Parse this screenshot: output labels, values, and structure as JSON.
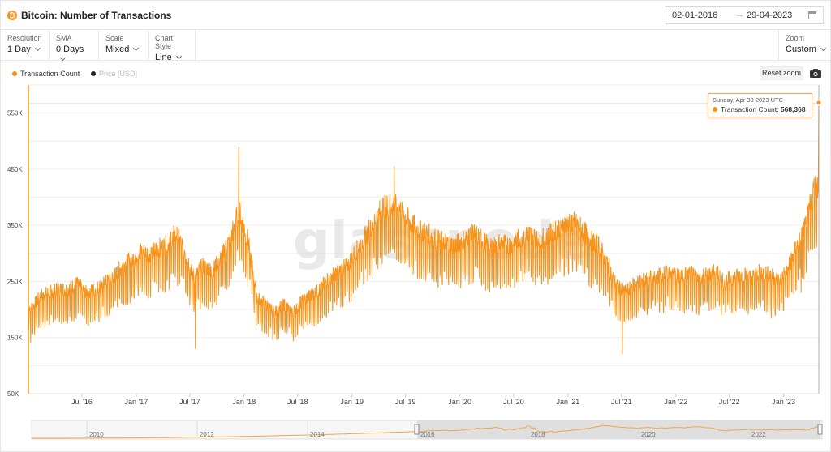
{
  "header": {
    "coin_symbol": "₿",
    "title": "Bitcoin: Number of Transactions",
    "date_from": "02-01-2016",
    "date_arrow": "→",
    "date_to": "29-04-2023"
  },
  "toolbar": {
    "resolution": {
      "label": "Resolution",
      "value": "1 Day"
    },
    "sma": {
      "label": "SMA",
      "value": "0 Days"
    },
    "scale": {
      "label": "Scale",
      "value": "Mixed"
    },
    "chart_style": {
      "label": "Chart Style",
      "value": "Line"
    },
    "zoom": {
      "label": "Zoom",
      "value": "Custom"
    }
  },
  "legend": {
    "series1": "Transaction Count",
    "series2": "Price [USD]"
  },
  "reset_zoom": "Reset zoom",
  "watermark": "glassnode",
  "tooltip": {
    "date": "Sunday, Apr 30 2023 UTC",
    "label": "Transaction Count:",
    "value": "568,368"
  },
  "colors": {
    "series": "#f7931a",
    "price": "#222222",
    "grid": "#ececec"
  },
  "navigator_ticks": [
    "2010",
    "2012",
    "2014",
    "2016",
    "2018",
    "2020",
    "2022"
  ],
  "chart_data": {
    "type": "line",
    "title": "Bitcoin: Number of Transactions",
    "series": [
      {
        "name": "Transaction Count",
        "x": [
          "2016-01",
          "2016-02",
          "2016-03",
          "2016-04",
          "2016-05",
          "2016-06",
          "2016-07",
          "2016-08",
          "2016-09",
          "2016-10",
          "2016-11",
          "2016-12",
          "2017-01",
          "2017-02",
          "2017-03",
          "2017-04",
          "2017-05",
          "2017-06",
          "2017-07",
          "2017-08",
          "2017-09",
          "2017-10",
          "2017-11",
          "2017-12",
          "2018-01",
          "2018-02",
          "2018-03",
          "2018-04",
          "2018-05",
          "2018-06",
          "2018-07",
          "2018-08",
          "2018-09",
          "2018-10",
          "2018-11",
          "2018-12",
          "2019-01",
          "2019-02",
          "2019-03",
          "2019-04",
          "2019-05",
          "2019-06",
          "2019-07",
          "2019-08",
          "2019-09",
          "2019-10",
          "2019-11",
          "2019-12",
          "2020-01",
          "2020-02",
          "2020-03",
          "2020-04",
          "2020-05",
          "2020-06",
          "2020-07",
          "2020-08",
          "2020-09",
          "2020-10",
          "2020-11",
          "2020-12",
          "2021-01",
          "2021-02",
          "2021-03",
          "2021-04",
          "2021-05",
          "2021-06",
          "2021-07",
          "2021-08",
          "2021-09",
          "2021-10",
          "2021-11",
          "2021-12",
          "2022-01",
          "2022-02",
          "2022-03",
          "2022-04",
          "2022-05",
          "2022-06",
          "2022-07",
          "2022-08",
          "2022-09",
          "2022-10",
          "2022-11",
          "2022-12",
          "2023-01",
          "2023-02",
          "2023-03",
          "2023-04"
        ],
        "values": [
          195000,
          215000,
          220000,
          225000,
          225000,
          235000,
          220000,
          225000,
          235000,
          245000,
          265000,
          275000,
          290000,
          285000,
          295000,
          300000,
          320000,
          290000,
          245000,
          265000,
          255000,
          280000,
          310000,
          360000,
          305000,
          210000,
          200000,
          185000,
          200000,
          185000,
          205000,
          215000,
          225000,
          245000,
          255000,
          265000,
          290000,
          315000,
          340000,
          365000,
          370000,
          360000,
          340000,
          325000,
          320000,
          310000,
          305000,
          300000,
          310000,
          320000,
          310000,
          295000,
          305000,
          300000,
          310000,
          320000,
          315000,
          310000,
          325000,
          335000,
          340000,
          330000,
          310000,
          300000,
          270000,
          230000,
          220000,
          235000,
          240000,
          245000,
          250000,
          255000,
          245000,
          255000,
          245000,
          250000,
          255000,
          240000,
          245000,
          250000,
          245000,
          255000,
          250000,
          240000,
          260000,
          300000,
          330000,
          400000
        ]
      }
    ],
    "tooltip_point": {
      "x": "2023-04-30",
      "y": 568368
    },
    "y_ticks": [
      "50K",
      "150K",
      "250K",
      "350K",
      "450K",
      "550K"
    ],
    "x_ticks": [
      "Jul '16",
      "Jan '17",
      "Jul '17",
      "Jan '18",
      "Jul '18",
      "Jan '19",
      "Jul '19",
      "Jan '20",
      "Jul '20",
      "Jan '21",
      "Jul '21",
      "Jan '22",
      "Jul '22",
      "Jan '23"
    ],
    "ylim": [
      50000,
      600000
    ],
    "xlabel": "",
    "ylabel": "",
    "grid": true,
    "legend": "top-left"
  }
}
